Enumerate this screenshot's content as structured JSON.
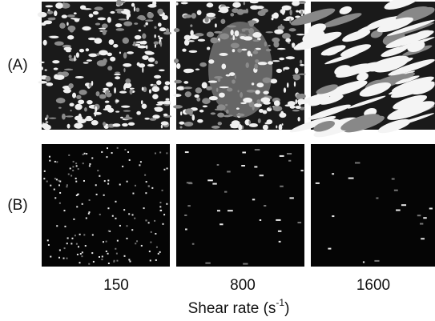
{
  "row_labels": [
    "(A)",
    "(B)"
  ],
  "column_labels": [
    "150",
    "800",
    "1600"
  ],
  "x_label": {
    "text": "Shear rate (s",
    "superscript": "-1",
    "suffix": ")"
  }
}
